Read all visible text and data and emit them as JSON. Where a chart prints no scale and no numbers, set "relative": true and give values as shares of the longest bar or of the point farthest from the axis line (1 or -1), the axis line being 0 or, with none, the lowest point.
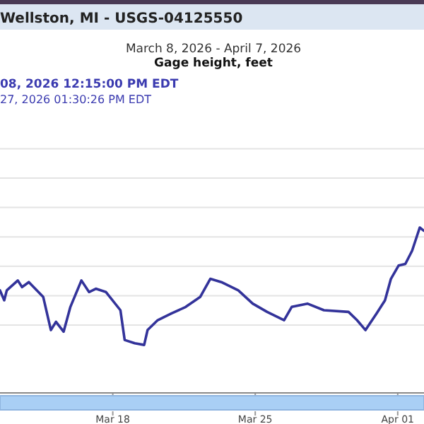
{
  "chart_data": {
    "type": "line",
    "title": "Wellston, MI - USGS-04125550",
    "subtitle": "March 8, 2026 - April 7, 2026",
    "relative": true,
    "grid": "y",
    "marker": "none",
    "line_style": "solid",
    "annotations": [
      "Gage height, feet",
      "08, 2026 12:15:00 PM EDT",
      "27, 2026 01:30:26 PM EDT"
    ],
    "xlim": [
      "2026-03-12T11:00",
      "2026-04-02T07:00"
    ],
    "xticks": [
      {
        "value": "2026-03-18",
        "label": "Mar 18"
      },
      {
        "value": "2026-03-25",
        "label": "Mar 25"
      },
      {
        "value": "2026-04-01",
        "label": "Apr 01"
      }
    ],
    "x": [
      "2026-03-12T11:00",
      "2026-03-12T16:00",
      "2026-03-12T19:00",
      "2026-03-13T08:00",
      "2026-03-13T13:00",
      "2026-03-13T21:00",
      "2026-03-14T14:00",
      "2026-03-14T23:00",
      "2026-03-15T05:00",
      "2026-03-15T14:00",
      "2026-03-15T22:00",
      "2026-03-16T11:00",
      "2026-03-16T20:00",
      "2026-03-17T04:00",
      "2026-03-17T16:00",
      "2026-03-18T09:00",
      "2026-03-18T14:00",
      "2026-03-19T02:00",
      "2026-03-19T13:00",
      "2026-03-19T17:00",
      "2026-03-20T05:00",
      "2026-03-20T21:00",
      "2026-03-21T14:00",
      "2026-03-22T07:00",
      "2026-03-22T19:00",
      "2026-03-23T08:00",
      "2026-03-24T04:00",
      "2026-03-24T21:00",
      "2026-03-25T14:00",
      "2026-03-26T10:00",
      "2026-03-26T19:00",
      "2026-03-27T13:30",
      "2026-03-28T09:00",
      "2026-03-29T14:00",
      "2026-03-30T00:00",
      "2026-03-30T10:00",
      "2026-03-30T23:00",
      "2026-03-31T09:00",
      "2026-03-31T16:00",
      "2026-04-01T01:00",
      "2026-04-01T09:00",
      "2026-04-01T17:00",
      "2026-04-02T02:00",
      "2026-04-02T07:00"
    ],
    "series": [
      {
        "color": "#33339a",
        "values": [
          0.62,
          0.56,
          0.62,
          0.68,
          0.64,
          0.67,
          0.58,
          0.38,
          0.43,
          0.37,
          0.52,
          0.68,
          0.61,
          0.63,
          0.61,
          0.5,
          0.32,
          0.3,
          0.29,
          0.38,
          0.44,
          0.48,
          0.52,
          0.58,
          0.69,
          0.67,
          0.62,
          0.54,
          0.49,
          0.44,
          0.52,
          0.54,
          0.5,
          0.49,
          0.44,
          0.38,
          0.48,
          0.56,
          0.69,
          0.77,
          0.78,
          0.86,
          1.0,
          0.98
        ]
      }
    ]
  }
}
